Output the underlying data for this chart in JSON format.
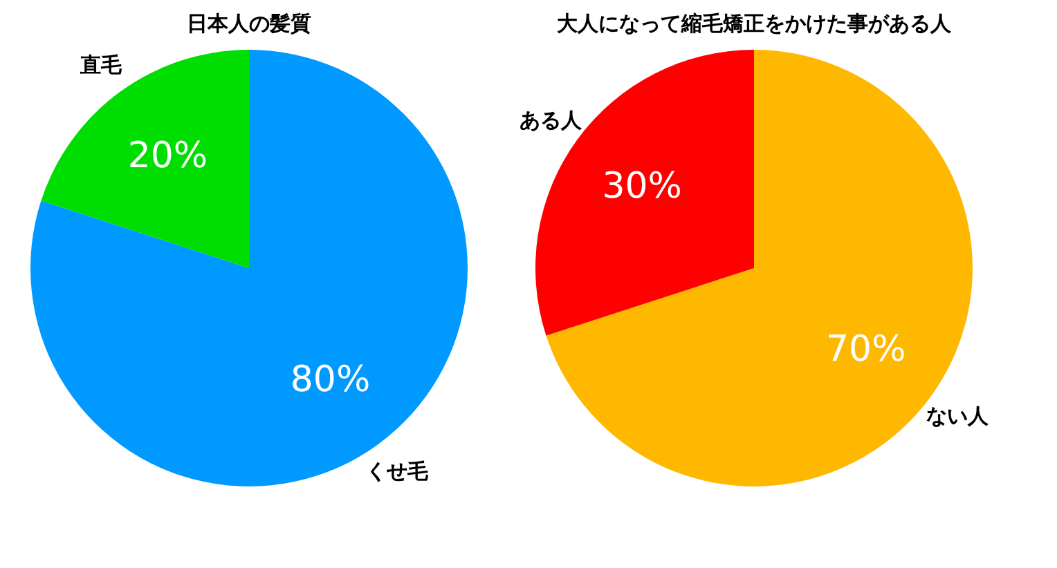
{
  "chart_data": [
    {
      "type": "pie",
      "title": "日本人の髪質",
      "categories": [
        "くせ毛",
        "直毛"
      ],
      "values": [
        80,
        20
      ],
      "colors": [
        "#0099ff",
        "#00dd00"
      ],
      "value_labels": [
        "80%",
        "20%"
      ],
      "legend": false
    },
    {
      "type": "pie",
      "title": "大人になって縮毛矯正をかけた事がある人",
      "categories": [
        "ない人",
        "ある人"
      ],
      "values": [
        70,
        30
      ],
      "colors": [
        "#ffb800",
        "#ff0000"
      ],
      "value_labels": [
        "70%",
        "30%"
      ],
      "legend": false
    }
  ]
}
